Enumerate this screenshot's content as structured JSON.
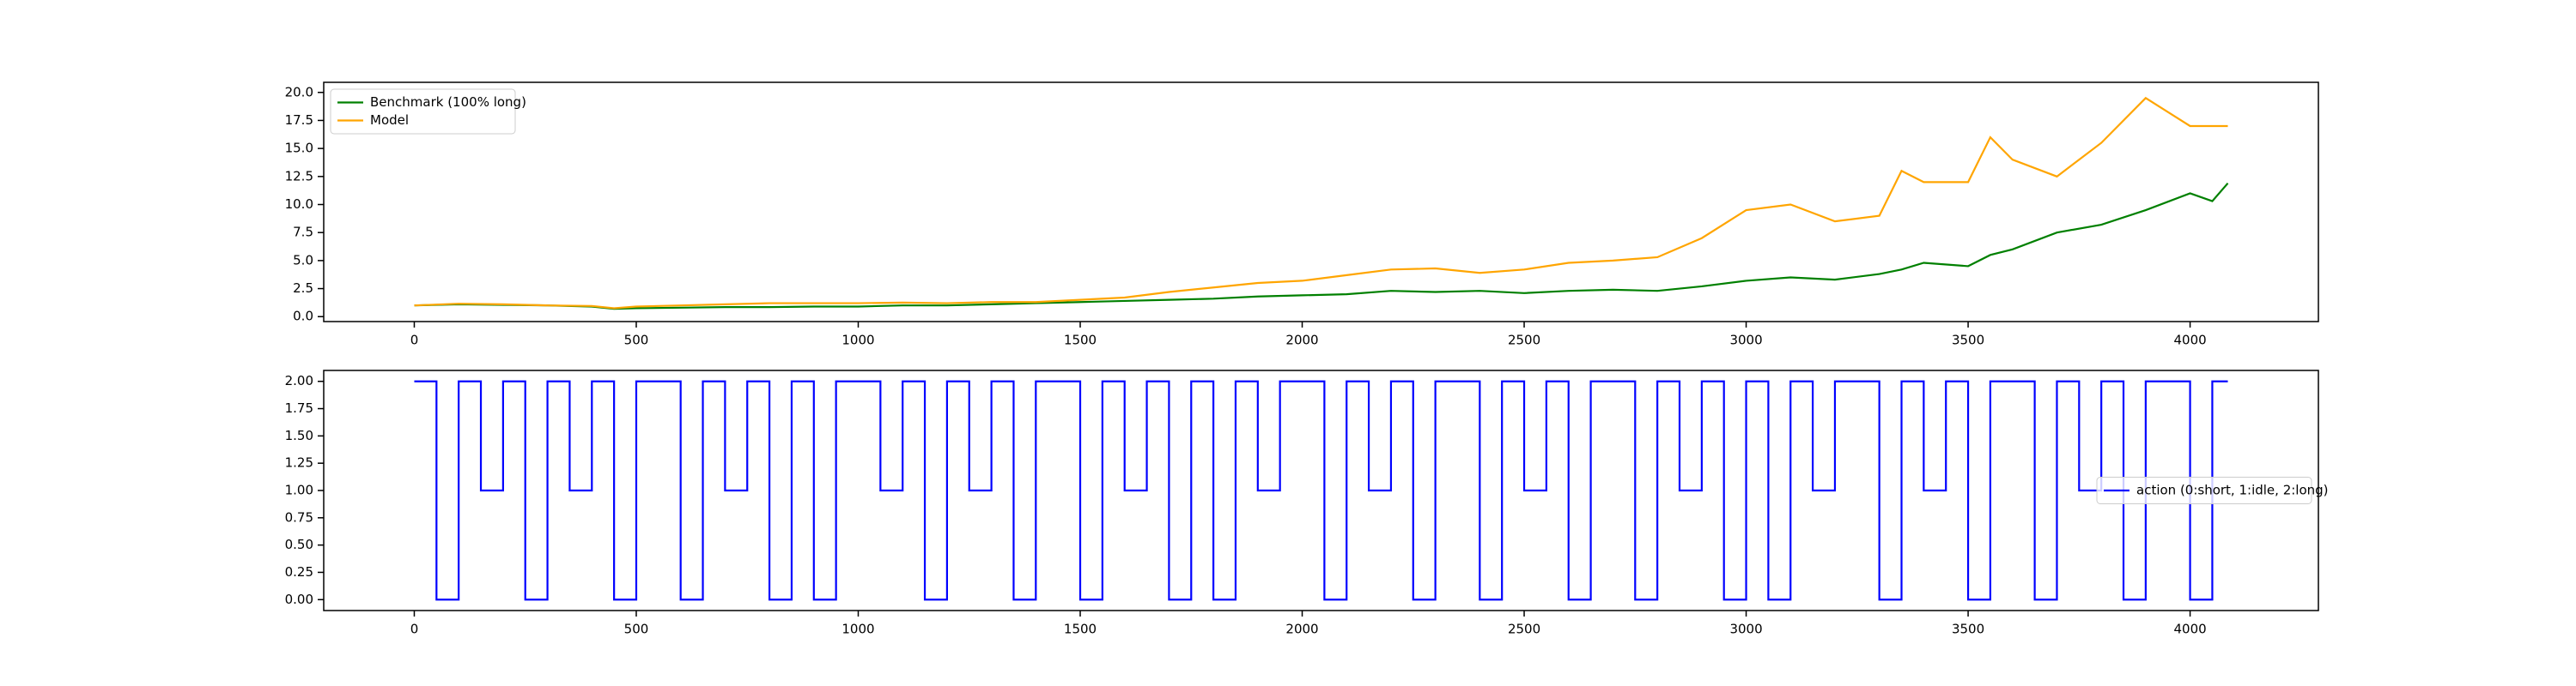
{
  "chart_data": [
    {
      "type": "line",
      "x": [
        0,
        100,
        200,
        300,
        400,
        450,
        500,
        600,
        700,
        800,
        900,
        1000,
        1100,
        1200,
        1300,
        1400,
        1500,
        1600,
        1700,
        1800,
        1900,
        2000,
        2100,
        2200,
        2300,
        2400,
        2500,
        2600,
        2700,
        2800,
        2900,
        3000,
        3100,
        3200,
        3300,
        3350,
        3400,
        3500,
        3550,
        3600,
        3700,
        3800,
        3900,
        4000,
        4050,
        4085
      ],
      "series": [
        {
          "name": "Benchmark (100% long)",
          "color": "green",
          "values": [
            1.0,
            1.1,
            1.05,
            1.0,
            0.9,
            0.7,
            0.75,
            0.8,
            0.85,
            0.85,
            0.9,
            0.9,
            1.0,
            1.0,
            1.1,
            1.2,
            1.3,
            1.4,
            1.5,
            1.6,
            1.8,
            1.9,
            2.0,
            2.3,
            2.2,
            2.3,
            2.1,
            2.3,
            2.4,
            2.3,
            2.7,
            3.2,
            3.5,
            3.3,
            3.8,
            4.2,
            4.8,
            4.5,
            5.5,
            6.0,
            7.5,
            8.2,
            9.5,
            11.0,
            10.3,
            11.9
          ]
        },
        {
          "name": "Model",
          "color": "orange",
          "values": [
            1.0,
            1.15,
            1.1,
            1.0,
            0.95,
            0.75,
            0.9,
            1.0,
            1.1,
            1.2,
            1.2,
            1.2,
            1.25,
            1.2,
            1.3,
            1.3,
            1.5,
            1.7,
            2.2,
            2.6,
            3.0,
            3.2,
            3.7,
            4.2,
            4.3,
            3.9,
            4.2,
            4.8,
            5.0,
            5.3,
            7.0,
            9.5,
            10.0,
            8.5,
            9.0,
            13.0,
            12.0,
            12.0,
            16.0,
            14.0,
            12.5,
            15.5,
            19.5,
            17.0,
            17.0,
            17.0
          ]
        }
      ],
      "xlim": [
        -204,
        4289
      ],
      "xticks": [
        0,
        500,
        1000,
        1500,
        2000,
        2500,
        3000,
        3500,
        4000
      ],
      "ylim": [
        -0.44,
        20.9
      ],
      "yticks": [
        {
          "value": 0,
          "label": "0.0"
        },
        {
          "value": 2.5,
          "label": "2.5"
        },
        {
          "value": 5,
          "label": "5.0"
        },
        {
          "value": 7.5,
          "label": "7.5"
        },
        {
          "value": 10,
          "label": "10.0"
        },
        {
          "value": 12.5,
          "label": "12.5"
        },
        {
          "value": 15,
          "label": "15.0"
        },
        {
          "value": 17.5,
          "label": "17.5"
        },
        {
          "value": 20,
          "label": "20.0"
        }
      ],
      "legend": "upper left"
    },
    {
      "type": "line",
      "step": true,
      "x": [
        0,
        50,
        100,
        150,
        200,
        250,
        300,
        350,
        400,
        450,
        500,
        550,
        600,
        650,
        700,
        750,
        800,
        850,
        900,
        950,
        1000,
        1050,
        1100,
        1150,
        1200,
        1250,
        1300,
        1350,
        1400,
        1450,
        1500,
        1550,
        1600,
        1650,
        1700,
        1750,
        1800,
        1850,
        1900,
        1950,
        2000,
        2050,
        2100,
        2150,
        2200,
        2250,
        2300,
        2350,
        2400,
        2450,
        2500,
        2550,
        2600,
        2650,
        2700,
        2750,
        2800,
        2850,
        2900,
        2950,
        3000,
        3050,
        3100,
        3150,
        3200,
        3250,
        3300,
        3350,
        3400,
        3450,
        3500,
        3550,
        3600,
        3650,
        3700,
        3750,
        3800,
        3850,
        3900,
        3950,
        4000,
        4050,
        4085
      ],
      "series": [
        {
          "name": "action (0:short, 1:idle, 2:long)",
          "color": "blue",
          "values": [
            2,
            0,
            2,
            1,
            2,
            0,
            2,
            1,
            2,
            0,
            2,
            2,
            0,
            2,
            1,
            2,
            0,
            2,
            0,
            2,
            2,
            1,
            2,
            0,
            2,
            1,
            2,
            0,
            2,
            2,
            0,
            2,
            1,
            2,
            0,
            2,
            0,
            2,
            1,
            2,
            2,
            0,
            2,
            1,
            2,
            0,
            2,
            2,
            0,
            2,
            1,
            2,
            0,
            2,
            2,
            0,
            2,
            1,
            2,
            0,
            2,
            0,
            2,
            1,
            2,
            2,
            0,
            2,
            1,
            2,
            0,
            2,
            2,
            0,
            2,
            1,
            2,
            0,
            2,
            2,
            0,
            2,
            2
          ]
        }
      ],
      "xlim": [
        -204,
        4289
      ],
      "xticks": [
        0,
        500,
        1000,
        1500,
        2000,
        2500,
        3000,
        3500,
        4000
      ],
      "ylim": [
        -0.1,
        2.1
      ],
      "yticks": [
        {
          "value": 0,
          "label": "0.00"
        },
        {
          "value": 0.25,
          "label": "0.25"
        },
        {
          "value": 0.5,
          "label": "0.50"
        },
        {
          "value": 0.75,
          "label": "0.75"
        },
        {
          "value": 1,
          "label": "1.00"
        },
        {
          "value": 1.25,
          "label": "1.25"
        },
        {
          "value": 1.5,
          "label": "1.50"
        },
        {
          "value": 1.75,
          "label": "1.75"
        },
        {
          "value": 2,
          "label": "2.00"
        }
      ],
      "legend": "center right"
    }
  ]
}
